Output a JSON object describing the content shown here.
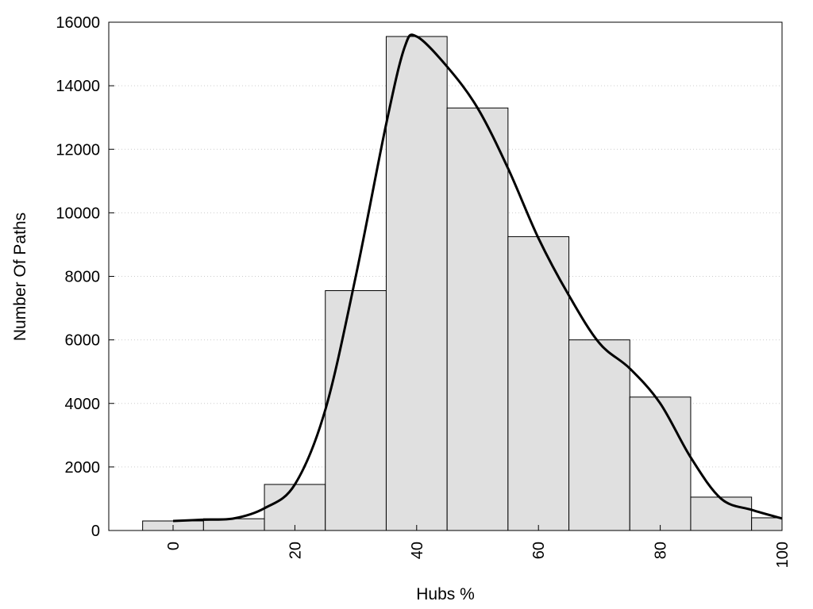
{
  "chart_data": {
    "type": "bar",
    "title": "",
    "xlabel": "Hubs %",
    "ylabel": "Number Of Paths",
    "xlim": [
      -10,
      100
    ],
    "ylim": [
      0,
      16000
    ],
    "x_ticks": [
      0,
      20,
      40,
      60,
      80,
      100
    ],
    "y_ticks": [
      0,
      2000,
      4000,
      6000,
      8000,
      10000,
      12000,
      14000,
      16000
    ],
    "grid": "horizontal dotted",
    "bin_width": 10,
    "bars": [
      {
        "x": 0,
        "value": 300
      },
      {
        "x": 10,
        "value": 370
      },
      {
        "x": 20,
        "value": 1450
      },
      {
        "x": 30,
        "value": 7550
      },
      {
        "x": 40,
        "value": 15550
      },
      {
        "x": 50,
        "value": 13300
      },
      {
        "x": 60,
        "value": 9250
      },
      {
        "x": 70,
        "value": 6000
      },
      {
        "x": 80,
        "value": 4200
      },
      {
        "x": 90,
        "value": 1050
      },
      {
        "x": 100,
        "value": 400
      }
    ],
    "curve": [
      [
        0,
        300
      ],
      [
        5,
        340
      ],
      [
        10,
        380
      ],
      [
        15,
        700
      ],
      [
        20,
        1450
      ],
      [
        25,
        3800
      ],
      [
        30,
        8000
      ],
      [
        35,
        12800
      ],
      [
        38,
        15200
      ],
      [
        40,
        15550
      ],
      [
        45,
        14600
      ],
      [
        50,
        13300
      ],
      [
        55,
        11400
      ],
      [
        60,
        9200
      ],
      [
        65,
        7400
      ],
      [
        70,
        5900
      ],
      [
        75,
        5100
      ],
      [
        80,
        4000
      ],
      [
        85,
        2300
      ],
      [
        90,
        1000
      ],
      [
        95,
        650
      ],
      [
        100,
        380
      ]
    ],
    "colors": {
      "bar_fill": "#e0e0e0",
      "bar_stroke": "#000000",
      "curve": "#000000",
      "grid": "#cccccc"
    }
  }
}
